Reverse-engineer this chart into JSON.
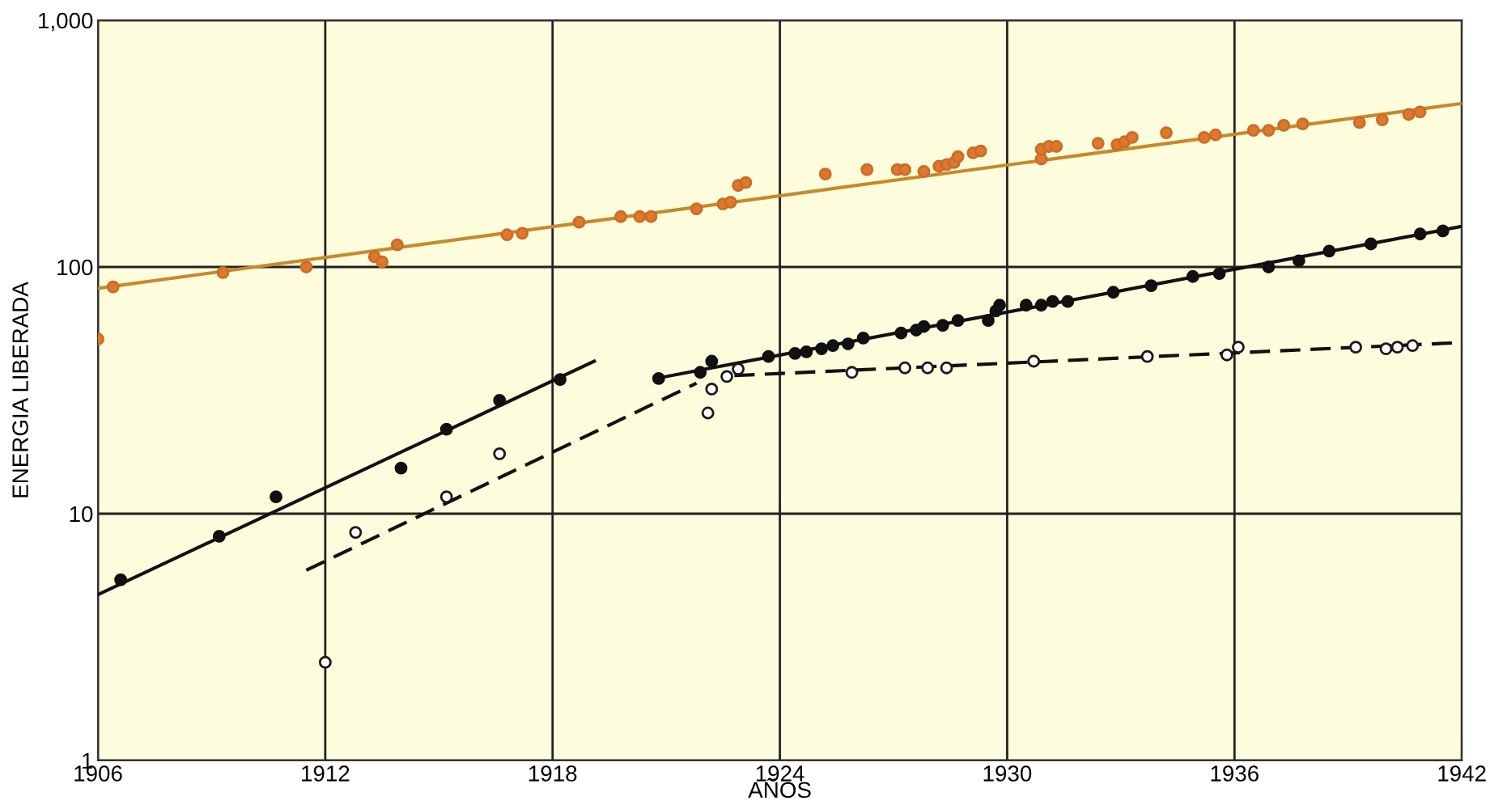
{
  "chart_data": {
    "type": "scatter",
    "xlabel": "AÑOS",
    "ylabel": "ENERGIA LIBERADA",
    "log": "y",
    "grid": true,
    "xlim": [
      1906,
      1942
    ],
    "xticks": [
      1906,
      1912,
      1918,
      1924,
      1930,
      1936,
      1942
    ],
    "ylim": [
      1,
      1000
    ],
    "yticks": [
      {
        "value": 1,
        "label": "1"
      },
      {
        "value": 10,
        "label": "10"
      },
      {
        "value": 100,
        "label": "100"
      },
      {
        "value": 1000,
        "label": "1,000"
      }
    ],
    "series": [
      {
        "color": "#e0782c",
        "marker": "circle",
        "x": [
          1906.0,
          1906.4,
          1909.3,
          1911.5,
          1913.3,
          1913.5,
          1913.9,
          1916.8,
          1917.2,
          1918.7,
          1919.8,
          1920.3,
          1920.6,
          1921.8,
          1922.5,
          1922.7,
          1922.9,
          1923.1,
          1925.2,
          1926.3,
          1927.1,
          1927.3,
          1927.8,
          1928.2,
          1928.4,
          1928.6,
          1928.7,
          1929.1,
          1929.3,
          1930.9,
          1930.9,
          1931.1,
          1931.3,
          1932.4,
          1932.9,
          1933.1,
          1933.3,
          1934.2,
          1935.2,
          1935.5,
          1936.5,
          1936.9,
          1937.3,
          1937.8,
          1939.3,
          1939.9,
          1940.6,
          1940.9
        ],
        "values": [
          51,
          83,
          95,
          100,
          110,
          105,
          123,
          135,
          137,
          152,
          160,
          160,
          160,
          172,
          180,
          183,
          214,
          220,
          238,
          248,
          248,
          248,
          244,
          256,
          260,
          265,
          280,
          290,
          295,
          274,
          300,
          308,
          308,
          317,
          313,
          322,
          335,
          350,
          335,
          343,
          358,
          358,
          375,
          380,
          385,
          395,
          415,
          425
        ]
      },
      {
        "type": "line",
        "color": "#c8892a",
        "marker": "none",
        "x": [
          1906,
          1942
        ],
        "values": [
          82,
          460
        ],
        "line_style": "solid"
      },
      {
        "color": "#111111",
        "marker": "circle",
        "x": [
          1906.6,
          1909.2,
          1910.7,
          1914.0,
          1915.2,
          1916.6,
          1918.2
        ],
        "values": [
          5.4,
          8.1,
          11.7,
          15.3,
          22,
          28.8,
          35
        ]
      },
      {
        "type": "line",
        "color": "#111111",
        "marker": "none",
        "x": [
          1906,
          1919.1
        ],
        "values": [
          4.7,
          41.5
        ],
        "line_style": "solid"
      },
      {
        "color": "#ffffff",
        "marker": "circle",
        "x": [
          1912.0,
          1912.8,
          1915.2,
          1916.6
        ],
        "values": [
          2.5,
          8.4,
          11.7,
          17.5
        ]
      },
      {
        "type": "line",
        "color": "#111111",
        "marker": "none",
        "x": [
          1911.5,
          1921.8
        ],
        "values": [
          5.9,
          33.8
        ],
        "line_style": "dashed"
      },
      {
        "color": "#111111",
        "marker": "circle",
        "x": [
          1920.8,
          1921.9,
          1922.2,
          1923.7,
          1924.4,
          1924.7,
          1925.1,
          1925.4,
          1925.8,
          1926.2,
          1927.2,
          1927.6,
          1927.8,
          1928.3,
          1928.7,
          1929.5,
          1929.7,
          1929.8,
          1930.5,
          1930.9,
          1931.2,
          1931.6,
          1932.8,
          1933.8,
          1934.9,
          1935.6,
          1936.9,
          1937.7,
          1938.5,
          1939.6,
          1940.9,
          1941.5
        ],
        "values": [
          35.3,
          37.4,
          41.5,
          43.4,
          44.6,
          45.3,
          46.6,
          48,
          48.8,
          51.5,
          54,
          55.5,
          57.4,
          58,
          60.7,
          60.7,
          66.3,
          70,
          70,
          70,
          72.5,
          72.5,
          79,
          84,
          91.5,
          94,
          100,
          106,
          116,
          124,
          136,
          140
        ]
      },
      {
        "type": "line",
        "color": "#111111",
        "marker": "none",
        "x": [
          1920.8,
          1922.2,
          1942
        ],
        "values": [
          35.5,
          39,
          146
        ],
        "line_style": "solid"
      },
      {
        "color": "#ffffff",
        "marker": "circle",
        "x": [
          1922.1,
          1922.2,
          1922.6,
          1922.9,
          1925.9,
          1927.3,
          1927.9,
          1928.4,
          1930.7,
          1933.7,
          1935.8,
          1936.1,
          1939.2,
          1940.0,
          1940.3,
          1940.7
        ],
        "values": [
          25.6,
          32,
          36,
          38.6,
          37.4,
          39,
          39,
          39,
          41.5,
          43.4,
          44,
          47.3,
          47.3,
          46.6,
          47.3,
          48
        ]
      },
      {
        "type": "line",
        "color": "#111111",
        "marker": "none",
        "x": [
          1922.8,
          1942
        ],
        "values": [
          36.3,
          49.4
        ],
        "line_style": "dashed"
      }
    ]
  }
}
